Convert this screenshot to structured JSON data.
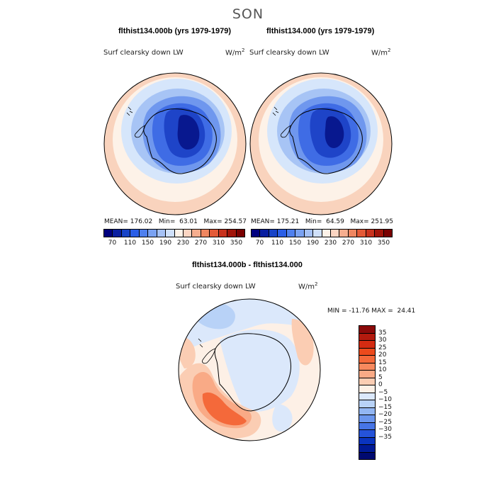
{
  "season": "SON",
  "panels": [
    {
      "title": "flthist134.000b (yrs 1979-1979)",
      "variable": "Surf clearsky down LW",
      "units_base": "W/m",
      "units_exp": "2",
      "mean_label": "MEAN=",
      "mean": "176.02",
      "min_label": "Min=",
      "min": "63.01",
      "max_label": "Max=",
      "max": "254.57"
    },
    {
      "title": "flthist134.000 (yrs 1979-1979)",
      "variable": "Surf clearsky down LW",
      "units_base": "W/m",
      "units_exp": "2",
      "mean_label": "MEAN=",
      "mean": "175.21",
      "min_label": "Min=",
      "min": "64.59",
      "max_label": "Max=",
      "max": "251.95"
    }
  ],
  "abs_colorbar": {
    "colors": [
      "#00007f",
      "#0a1fa0",
      "#1844c7",
      "#2a5ee6",
      "#4f80ee",
      "#7aa2f2",
      "#a5c1f5",
      "#cfe0fa",
      "#fdf2e8",
      "#fbd5c2",
      "#f6ae8f",
      "#ef8660",
      "#e35a37",
      "#c8321d",
      "#a11409",
      "#7a0000"
    ],
    "labels": [
      "70",
      "110",
      "150",
      "190",
      "230",
      "270",
      "310",
      "350"
    ]
  },
  "diff_panel": {
    "title": "flthist134.000b - flthist134.000",
    "variable": "Surf clearsky down LW",
    "units_base": "W/m",
    "units_exp": "2",
    "minmax_text": "MIN = -11.76 MAX =  24.41"
  },
  "diff_colorbar": {
    "colors": [
      "#8b0a0a",
      "#b31a0e",
      "#d42b12",
      "#ec4a1c",
      "#f4693a",
      "#f7895e",
      "#f9aa86",
      "#fbcdb3",
      "#fdf0e6",
      "#dbe8fb",
      "#b8d2f7",
      "#92b6f3",
      "#6b96ee",
      "#4775e6",
      "#2553d9",
      "#0a34bf",
      "#001a96",
      "#000a70"
    ],
    "labels": [
      "35",
      "30",
      "25",
      "20",
      "15",
      "10",
      "5",
      "0",
      "−5",
      "−10",
      "−15",
      "−20",
      "−25",
      "−30",
      "−35"
    ]
  }
}
